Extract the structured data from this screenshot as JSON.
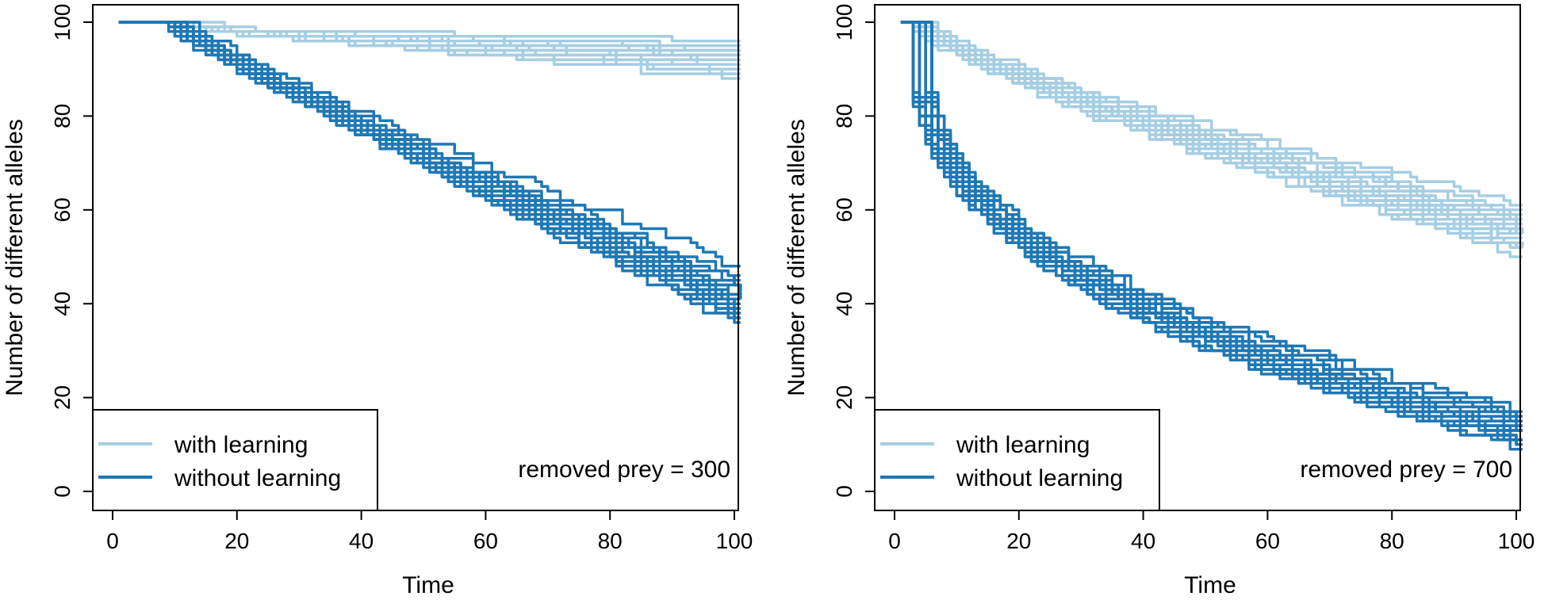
{
  "chart_data": [
    {
      "type": "line",
      "title": "",
      "xlabel": "Time",
      "ylabel": "Number of different alleles",
      "xlim": [
        0,
        100
      ],
      "ylim": [
        0,
        100
      ],
      "x_ticks": [
        "0",
        "20",
        "40",
        "60",
        "80",
        "100"
      ],
      "y_ticks": [
        "0",
        "20",
        "40",
        "60",
        "80",
        "100"
      ],
      "legend": {
        "position": "bottom-left",
        "entries": [
          {
            "label": "with learning",
            "color": "#a6cee3"
          },
          {
            "label": "without learning",
            "color": "#1f78b4"
          }
        ]
      },
      "annotation": "removed prey = 300",
      "series": [
        {
          "name": "with learning",
          "color": "#a6cee3",
          "runs": 20,
          "start": 100,
          "end_values": [
            97,
            96,
            96,
            95,
            95,
            95,
            94,
            94,
            94,
            93,
            93,
            93,
            92,
            92,
            92,
            91,
            91,
            90,
            90,
            89
          ],
          "onset": 8,
          "shape": 1.0
        },
        {
          "name": "without learning",
          "color": "#1f78b4",
          "runs": 20,
          "start": 100,
          "end_values": [
            48,
            46,
            45,
            44,
            44,
            43,
            42,
            42,
            41,
            41,
            40,
            40,
            40,
            39,
            39,
            38,
            38,
            37,
            37,
            36
          ],
          "onset": 8,
          "shape": 0.95
        }
      ]
    },
    {
      "type": "line",
      "title": "",
      "xlabel": "Time",
      "ylabel": "Number of different alleles",
      "xlim": [
        0,
        100
      ],
      "ylim": [
        0,
        100
      ],
      "x_ticks": [
        "0",
        "20",
        "40",
        "60",
        "80",
        "100"
      ],
      "y_ticks": [
        "0",
        "20",
        "40",
        "60",
        "80",
        "100"
      ],
      "legend": {
        "position": "bottom-left",
        "entries": [
          {
            "label": "with learning",
            "color": "#a6cee3"
          },
          {
            "label": "without learning",
            "color": "#1f78b4"
          }
        ]
      },
      "annotation": "removed prey = 700",
      "series": [
        {
          "name": "with learning",
          "color": "#a6cee3",
          "runs": 20,
          "start": 100,
          "end_values": [
            62,
            60,
            59,
            59,
            58,
            58,
            57,
            57,
            56,
            56,
            55,
            55,
            55,
            54,
            54,
            53,
            53,
            52,
            52,
            51
          ],
          "onset": 2,
          "shape": 0.75
        },
        {
          "name": "without learning",
          "color": "#1f78b4",
          "runs": 20,
          "start": 100,
          "end_values": [
            18,
            17,
            16,
            16,
            15,
            15,
            15,
            14,
            14,
            14,
            13,
            13,
            13,
            12,
            12,
            12,
            11,
            11,
            10,
            10
          ],
          "onset": 2,
          "shape": 0.35
        }
      ]
    }
  ]
}
